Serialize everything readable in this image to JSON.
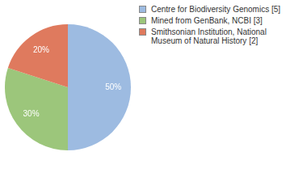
{
  "chart_data": {
    "type": "pie",
    "categories": [
      "Centre for Biodiversity Genomics [5]",
      "Mined from GenBank, NCBI [3]",
      "Smithsonian Institution, National Museum of Natural History [2]"
    ],
    "values": [
      50,
      30,
      20
    ],
    "value_labels": [
      "50%",
      "30%",
      "20%"
    ],
    "colors": [
      "#9dbbe1",
      "#9cc67b",
      "#df7a5e"
    ],
    "data_labels": true,
    "legend": "right"
  }
}
